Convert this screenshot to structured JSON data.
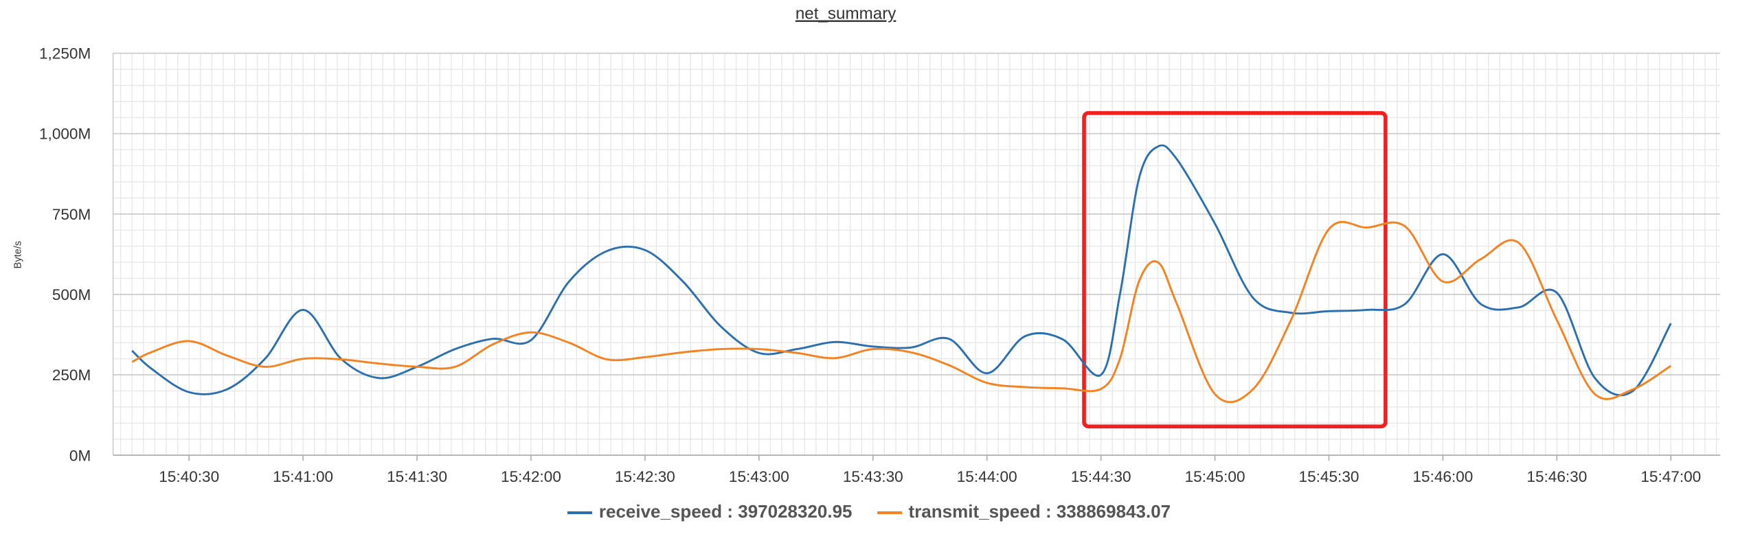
{
  "chart_data": {
    "type": "line",
    "title": "net_summary",
    "y_label": "Byte/s",
    "x": [
      "15:40:15",
      "15:40:20",
      "15:40:30",
      "15:40:40",
      "15:40:50",
      "15:41:00",
      "15:41:10",
      "15:41:20",
      "15:41:30",
      "15:41:40",
      "15:41:50",
      "15:42:00",
      "15:42:10",
      "15:42:20",
      "15:42:30",
      "15:42:40",
      "15:42:50",
      "15:43:00",
      "15:43:10",
      "15:43:20",
      "15:43:30",
      "15:43:40",
      "15:43:50",
      "15:44:00",
      "15:44:10",
      "15:44:20",
      "15:44:30",
      "15:44:35",
      "15:44:40",
      "15:44:45",
      "15:44:50",
      "15:45:00",
      "15:45:10",
      "15:45:20",
      "15:45:30",
      "15:45:40",
      "15:45:50",
      "15:46:00",
      "15:46:10",
      "15:46:20",
      "15:46:30",
      "15:46:40",
      "15:46:50",
      "15:47:00"
    ],
    "series": [
      {
        "name": "receive_speed",
        "color": "#2a6fb0",
        "legend_value": 397028320.95,
        "values": [
          325000000,
          270000000,
          196000000,
          205000000,
          300000000,
          452000000,
          300000000,
          240000000,
          275000000,
          330000000,
          362000000,
          358000000,
          540000000,
          635000000,
          638000000,
          540000000,
          400000000,
          318000000,
          330000000,
          352000000,
          338000000,
          335000000,
          362000000,
          255000000,
          370000000,
          360000000,
          250000000,
          500000000,
          860000000,
          960000000,
          920000000,
          720000000,
          490000000,
          443000000,
          448000000,
          452000000,
          470000000,
          625000000,
          470000000,
          460000000,
          505000000,
          240000000,
          200000000,
          410000000
        ]
      },
      {
        "name": "transmit_speed",
        "color": "#f5821f",
        "legend_value": 338869843.07,
        "values": [
          290000000,
          320000000,
          355000000,
          310000000,
          275000000,
          300000000,
          298000000,
          285000000,
          275000000,
          275000000,
          345000000,
          382000000,
          350000000,
          298000000,
          305000000,
          320000000,
          330000000,
          330000000,
          318000000,
          302000000,
          330000000,
          320000000,
          280000000,
          225000000,
          212000000,
          208000000,
          206000000,
          300000000,
          540000000,
          600000000,
          470000000,
          190000000,
          205000000,
          420000000,
          703000000,
          708000000,
          712000000,
          540000000,
          610000000,
          660000000,
          420000000,
          190000000,
          205000000,
          278000000
        ]
      }
    ],
    "xlim": [
      "15:40:10",
      "15:47:13"
    ],
    "xticks": [
      "15:40:30",
      "15:41:00",
      "15:41:30",
      "15:42:00",
      "15:42:30",
      "15:43:00",
      "15:43:30",
      "15:44:00",
      "15:44:30",
      "15:45:00",
      "15:45:30",
      "15:46:00",
      "15:46:30",
      "15:47:00"
    ],
    "ylim": [
      0,
      1250000000
    ],
    "yticks": [
      {
        "value": 0,
        "label": "0M"
      },
      {
        "value": 250000000,
        "label": "250M"
      },
      {
        "value": 500000000,
        "label": "500M"
      },
      {
        "value": 750000000,
        "label": "750M"
      },
      {
        "value": 1000000000,
        "label": "1,000M"
      },
      {
        "value": 1250000000,
        "label": "1,250M"
      }
    ],
    "grid": true,
    "minor_grid": true
  }
}
